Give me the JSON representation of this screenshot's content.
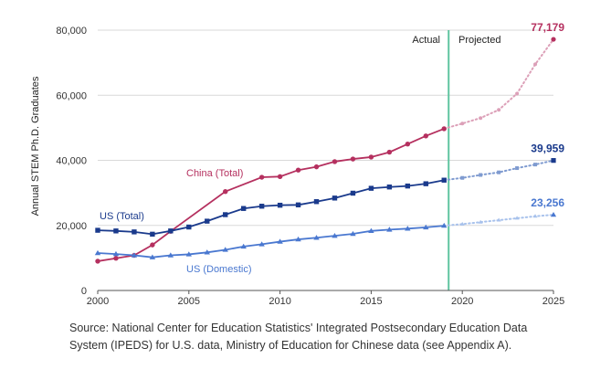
{
  "chart_data": {
    "type": "line",
    "ylabel": "Annual STEM Ph.D. Graduates",
    "xlabel": "",
    "xlim": [
      2000,
      2025
    ],
    "ylim": [
      0,
      80000
    ],
    "x_ticks": [
      "2000",
      "2005",
      "2010",
      "2015",
      "2020",
      "2025"
    ],
    "y_ticks": [
      "0",
      "20,000",
      "40,000",
      "60,000",
      "80,000"
    ],
    "grid": "horizontal",
    "actual_projected_divider_x": 2019.25,
    "phase_labels": {
      "actual": "Actual",
      "projected": "Projected"
    },
    "series": [
      {
        "name": "China (Total)",
        "color": "#b5305f",
        "projected_color": "#dca0b8",
        "marker": "circle",
        "end_label": "77,179",
        "actual": [
          [
            2000,
            9000
          ],
          [
            2001,
            9900
          ],
          [
            2002,
            10800
          ],
          [
            2003,
            14000
          ],
          [
            2004,
            18200
          ],
          [
            2007,
            30400
          ],
          [
            2009,
            34800
          ],
          [
            2010,
            35000
          ],
          [
            2011,
            37000
          ],
          [
            2012,
            38000
          ],
          [
            2013,
            39600
          ],
          [
            2014,
            40400
          ],
          [
            2015,
            41000
          ],
          [
            2016,
            42500
          ],
          [
            2017,
            45000
          ],
          [
            2018,
            47500
          ],
          [
            2019,
            49700
          ]
        ],
        "projected": [
          [
            2019,
            49700
          ],
          [
            2020,
            51300
          ],
          [
            2021,
            53000
          ],
          [
            2022,
            55500
          ],
          [
            2023,
            60500
          ],
          [
            2024,
            69500
          ],
          [
            2025,
            77179
          ]
        ]
      },
      {
        "name": "US (Total)",
        "color": "#1a3a8c",
        "projected_color": "#7f9bd0",
        "marker": "square",
        "end_label": "39,959",
        "actual": [
          [
            2000,
            18500
          ],
          [
            2001,
            18300
          ],
          [
            2002,
            18000
          ],
          [
            2003,
            17300
          ],
          [
            2004,
            18300
          ],
          [
            2005,
            19500
          ],
          [
            2006,
            21300
          ],
          [
            2007,
            23300
          ],
          [
            2008,
            25200
          ],
          [
            2009,
            25900
          ],
          [
            2010,
            26200
          ],
          [
            2011,
            26300
          ],
          [
            2012,
            27300
          ],
          [
            2013,
            28400
          ],
          [
            2014,
            29900
          ],
          [
            2015,
            31400
          ],
          [
            2016,
            31800
          ],
          [
            2017,
            32100
          ],
          [
            2018,
            32800
          ],
          [
            2019,
            33900
          ]
        ],
        "projected": [
          [
            2019,
            33900
          ],
          [
            2020,
            34600
          ],
          [
            2021,
            35500
          ],
          [
            2022,
            36300
          ],
          [
            2023,
            37600
          ],
          [
            2024,
            38700
          ],
          [
            2025,
            39959
          ]
        ]
      },
      {
        "name": "US (Domestic)",
        "color": "#4a78d0",
        "projected_color": "#a8c2ec",
        "marker": "triangle",
        "end_label": "23,256",
        "actual": [
          [
            2000,
            11500
          ],
          [
            2001,
            11200
          ],
          [
            2002,
            10800
          ],
          [
            2003,
            10200
          ],
          [
            2004,
            10800
          ],
          [
            2005,
            11100
          ],
          [
            2006,
            11700
          ],
          [
            2007,
            12500
          ],
          [
            2008,
            13500
          ],
          [
            2009,
            14200
          ],
          [
            2010,
            15000
          ],
          [
            2011,
            15700
          ],
          [
            2012,
            16200
          ],
          [
            2013,
            16800
          ],
          [
            2014,
            17400
          ],
          [
            2015,
            18300
          ],
          [
            2016,
            18700
          ],
          [
            2017,
            19000
          ],
          [
            2018,
            19400
          ],
          [
            2019,
            19900
          ]
        ],
        "projected": [
          [
            2019,
            19900
          ],
          [
            2020,
            20400
          ],
          [
            2021,
            21000
          ],
          [
            2022,
            21600
          ],
          [
            2023,
            22200
          ],
          [
            2024,
            22800
          ],
          [
            2025,
            23256
          ]
        ]
      }
    ]
  },
  "source_note": "Source: National Center for Education Statistics' Integrated Postsecondary Education Data System (IPEDS) for U.S. data, Ministry of Education for Chinese data (see Appendix A)."
}
